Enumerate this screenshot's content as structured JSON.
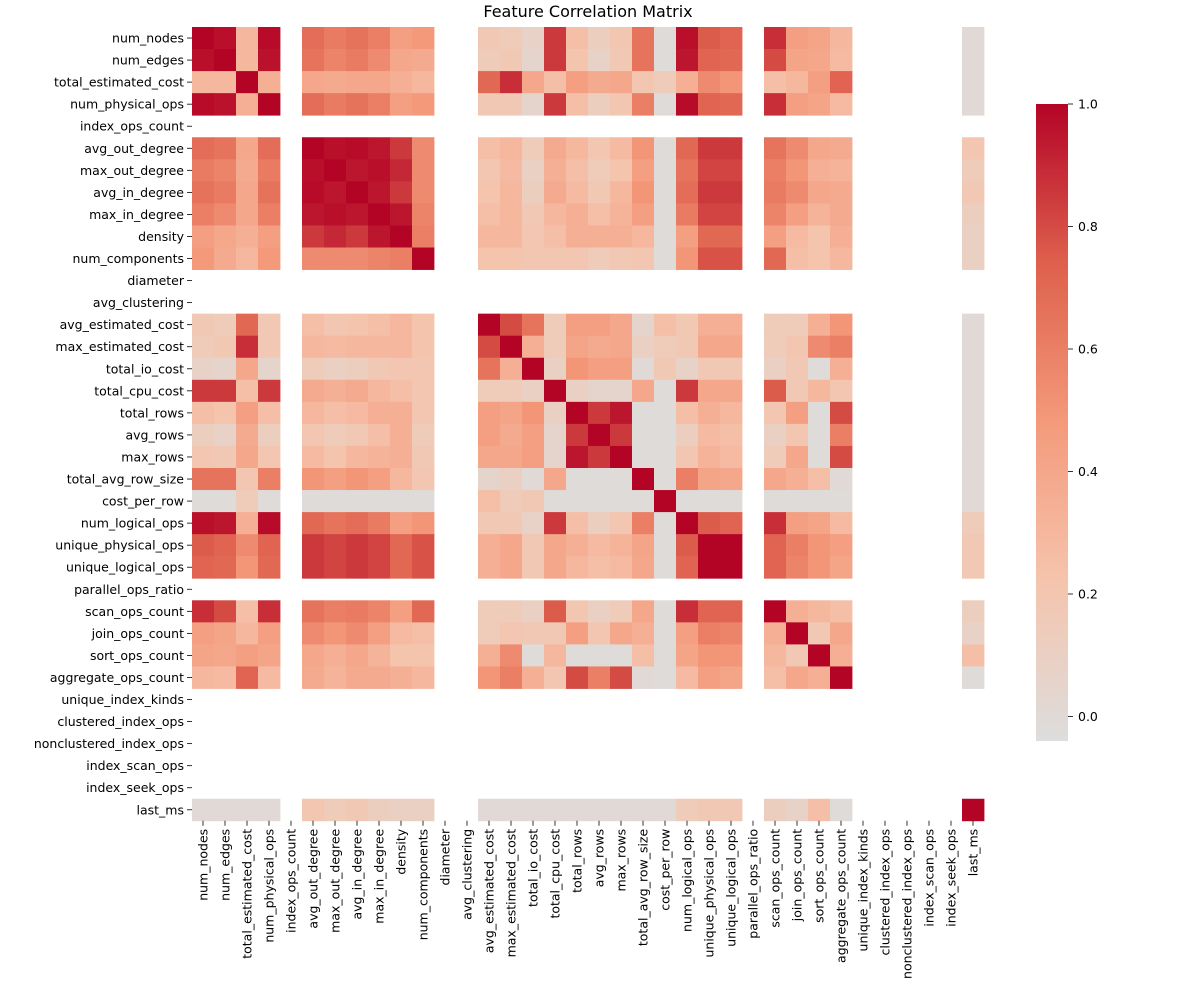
{
  "chart_data": {
    "type": "heatmap",
    "title": "Feature Correlation Matrix",
    "xlabel": "",
    "ylabel": "",
    "colormap": "coolwarm",
    "vmin": -0.04,
    "vmax": 1.0,
    "colorbar_ticks": [
      0.0,
      0.2,
      0.4,
      0.6,
      0.8,
      1.0
    ],
    "colorbar_tick_labels": [
      "0.0",
      "0.2",
      "0.4",
      "0.6",
      "0.8",
      "1.0"
    ],
    "labels": [
      "num_nodes",
      "num_edges",
      "total_estimated_cost",
      "num_physical_ops",
      "index_ops_count",
      "avg_out_degree",
      "max_out_degree",
      "avg_in_degree",
      "max_in_degree",
      "density",
      "num_components",
      "diameter",
      "avg_clustering",
      "avg_estimated_cost",
      "max_estimated_cost",
      "total_io_cost",
      "total_cpu_cost",
      "total_rows",
      "avg_rows",
      "max_rows",
      "total_avg_row_size",
      "cost_per_row",
      "num_logical_ops",
      "unique_physical_ops",
      "unique_logical_ops",
      "parallel_ops_ratio",
      "scan_ops_count",
      "join_ops_count",
      "sort_ops_count",
      "aggregate_ops_count",
      "unique_index_kinds",
      "clustered_index_ops",
      "nonclustered_index_ops",
      "index_scan_ops",
      "index_seek_ops",
      "last_ms"
    ],
    "matrix": [
      [
        1.0,
        0.97,
        0.3,
        0.98,
        null,
        0.68,
        0.62,
        0.66,
        0.6,
        0.45,
        0.48,
        null,
        null,
        0.18,
        0.15,
        0.08,
        0.85,
        0.25,
        0.12,
        0.2,
        0.65,
        -0.02,
        0.97,
        0.75,
        0.72,
        null,
        0.88,
        0.45,
        0.42,
        0.3,
        null,
        null,
        null,
        null,
        null,
        0.0
      ],
      [
        0.97,
        1.0,
        0.3,
        0.96,
        null,
        0.65,
        0.58,
        0.62,
        0.55,
        0.4,
        0.38,
        null,
        null,
        0.15,
        0.18,
        0.05,
        0.85,
        0.22,
        0.08,
        0.18,
        0.65,
        -0.02,
        0.95,
        0.72,
        0.7,
        null,
        0.8,
        0.42,
        0.4,
        0.28,
        null,
        null,
        null,
        null,
        null,
        0.0
      ],
      [
        0.3,
        0.3,
        1.0,
        0.35,
        null,
        0.4,
        0.38,
        0.4,
        0.4,
        0.35,
        0.3,
        null,
        null,
        0.7,
        0.88,
        0.4,
        0.25,
        0.45,
        0.38,
        0.4,
        0.2,
        0.15,
        0.35,
        0.55,
        0.5,
        null,
        0.25,
        0.3,
        0.45,
        0.72,
        null,
        null,
        null,
        null,
        null,
        0.0
      ],
      [
        0.98,
        0.96,
        0.35,
        1.0,
        null,
        0.68,
        0.62,
        0.66,
        0.6,
        0.45,
        0.48,
        null,
        null,
        0.18,
        0.18,
        0.05,
        0.85,
        0.25,
        0.12,
        0.2,
        0.6,
        -0.02,
        0.98,
        0.72,
        0.7,
        null,
        0.88,
        0.45,
        0.42,
        0.28,
        null,
        null,
        null,
        null,
        null,
        0.0
      ],
      [
        null,
        null,
        null,
        null,
        null,
        null,
        null,
        null,
        null,
        null,
        null,
        null,
        null,
        null,
        null,
        null,
        null,
        null,
        null,
        null,
        null,
        null,
        null,
        null,
        null,
        null,
        null,
        null,
        null,
        null,
        null,
        null,
        null,
        null,
        null,
        null
      ],
      [
        0.68,
        0.65,
        0.4,
        0.68,
        null,
        1.0,
        0.97,
        0.98,
        0.95,
        0.85,
        0.55,
        null,
        null,
        0.25,
        0.3,
        0.15,
        0.38,
        0.3,
        0.2,
        0.28,
        0.5,
        -0.02,
        0.7,
        0.85,
        0.85,
        null,
        0.65,
        0.55,
        0.4,
        0.38,
        null,
        null,
        null,
        null,
        null,
        0.2
      ],
      [
        0.62,
        0.58,
        0.38,
        0.62,
        null,
        0.97,
        1.0,
        0.95,
        0.97,
        0.9,
        0.55,
        null,
        null,
        0.2,
        0.28,
        0.1,
        0.35,
        0.25,
        0.15,
        0.22,
        0.45,
        -0.02,
        0.65,
        0.82,
        0.82,
        null,
        0.6,
        0.5,
        0.35,
        0.32,
        null,
        null,
        null,
        null,
        null,
        0.15
      ],
      [
        0.66,
        0.62,
        0.4,
        0.66,
        null,
        0.98,
        0.95,
        1.0,
        0.95,
        0.85,
        0.55,
        null,
        null,
        0.22,
        0.3,
        0.12,
        0.38,
        0.28,
        0.18,
        0.3,
        0.5,
        -0.02,
        0.68,
        0.85,
        0.85,
        null,
        0.62,
        0.55,
        0.4,
        0.38,
        null,
        null,
        null,
        null,
        null,
        0.18
      ],
      [
        0.6,
        0.55,
        0.4,
        0.6,
        null,
        0.95,
        0.97,
        0.95,
        1.0,
        0.95,
        0.58,
        null,
        null,
        0.25,
        0.3,
        0.18,
        0.3,
        0.35,
        0.25,
        0.32,
        0.45,
        -0.02,
        0.62,
        0.82,
        0.82,
        null,
        0.58,
        0.45,
        0.32,
        0.38,
        null,
        null,
        null,
        null,
        null,
        0.12
      ],
      [
        0.45,
        0.4,
        0.35,
        0.45,
        null,
        0.85,
        0.9,
        0.85,
        0.95,
        1.0,
        0.6,
        null,
        null,
        0.3,
        0.3,
        0.2,
        0.25,
        0.35,
        0.35,
        0.35,
        0.3,
        -0.02,
        0.45,
        0.7,
        0.7,
        null,
        0.45,
        0.28,
        0.22,
        0.35,
        null,
        null,
        null,
        null,
        null,
        0.1
      ],
      [
        0.48,
        0.38,
        0.3,
        0.48,
        null,
        0.55,
        0.55,
        0.55,
        0.58,
        0.6,
        1.0,
        null,
        null,
        0.22,
        0.22,
        0.2,
        0.2,
        0.2,
        0.15,
        0.18,
        0.2,
        -0.02,
        0.5,
        0.78,
        0.78,
        null,
        0.7,
        0.25,
        0.22,
        0.3,
        null,
        null,
        null,
        null,
        null,
        0.1
      ],
      [
        null,
        null,
        null,
        null,
        null,
        null,
        null,
        null,
        null,
        null,
        null,
        null,
        null,
        null,
        null,
        null,
        null,
        null,
        null,
        null,
        null,
        null,
        null,
        null,
        null,
        null,
        null,
        null,
        null,
        null,
        null,
        null,
        null,
        null,
        null,
        null
      ],
      [
        null,
        null,
        null,
        null,
        null,
        null,
        null,
        null,
        null,
        null,
        null,
        null,
        null,
        null,
        null,
        null,
        null,
        null,
        null,
        null,
        null,
        null,
        null,
        null,
        null,
        null,
        null,
        null,
        null,
        null,
        null,
        null,
        null,
        null,
        null,
        null
      ],
      [
        0.18,
        0.15,
        0.7,
        0.18,
        null,
        0.25,
        0.2,
        0.22,
        0.25,
        0.3,
        0.22,
        null,
        null,
        1.0,
        0.8,
        0.65,
        0.15,
        0.45,
        0.45,
        0.4,
        0.05,
        0.25,
        0.18,
        0.35,
        0.35,
        null,
        0.15,
        0.15,
        0.35,
        0.5,
        null,
        null,
        null,
        null,
        null,
        0.0
      ],
      [
        0.15,
        0.18,
        0.88,
        0.18,
        null,
        0.3,
        0.28,
        0.3,
        0.3,
        0.3,
        0.22,
        null,
        null,
        0.8,
        1.0,
        0.35,
        0.15,
        0.42,
        0.38,
        0.4,
        0.1,
        0.15,
        0.18,
        0.4,
        0.4,
        null,
        0.15,
        0.2,
        0.55,
        0.6,
        null,
        null,
        null,
        null,
        null,
        0.0
      ],
      [
        0.08,
        0.05,
        0.4,
        0.05,
        null,
        0.15,
        0.1,
        0.12,
        0.18,
        0.2,
        0.2,
        null,
        null,
        0.65,
        0.35,
        1.0,
        0.1,
        0.5,
        0.45,
        0.45,
        0.0,
        0.18,
        0.08,
        0.18,
        0.18,
        null,
        0.1,
        0.18,
        -0.02,
        0.35,
        null,
        null,
        null,
        null,
        null,
        0.0
      ],
      [
        0.85,
        0.85,
        0.25,
        0.85,
        null,
        0.38,
        0.35,
        0.38,
        0.3,
        0.25,
        0.2,
        null,
        null,
        0.15,
        0.15,
        0.1,
        1.0,
        0.1,
        0.05,
        0.05,
        0.4,
        -0.02,
        0.85,
        0.4,
        0.4,
        null,
        0.75,
        0.18,
        0.3,
        0.2,
        null,
        null,
        null,
        null,
        null,
        0.0
      ],
      [
        0.25,
        0.22,
        0.45,
        0.25,
        null,
        0.3,
        0.25,
        0.28,
        0.35,
        0.35,
        0.2,
        null,
        null,
        0.45,
        0.42,
        0.5,
        0.1,
        1.0,
        0.85,
        0.95,
        -0.02,
        -0.02,
        0.25,
        0.35,
        0.3,
        null,
        0.2,
        0.45,
        -0.02,
        0.8,
        null,
        null,
        null,
        null,
        null,
        0.0
      ],
      [
        0.12,
        0.08,
        0.38,
        0.12,
        null,
        0.2,
        0.15,
        0.18,
        0.25,
        0.35,
        0.15,
        null,
        null,
        0.45,
        0.38,
        0.45,
        0.05,
        0.85,
        1.0,
        0.85,
        -0.02,
        -0.02,
        0.12,
        0.28,
        0.25,
        null,
        0.1,
        0.2,
        -0.02,
        0.6,
        null,
        null,
        null,
        null,
        null,
        0.0
      ],
      [
        0.2,
        0.18,
        0.4,
        0.2,
        null,
        0.28,
        0.22,
        0.3,
        0.32,
        0.35,
        0.18,
        null,
        null,
        0.4,
        0.4,
        0.45,
        0.05,
        0.95,
        0.85,
        1.0,
        -0.02,
        -0.02,
        0.2,
        0.32,
        0.28,
        null,
        0.15,
        0.4,
        -0.02,
        0.8,
        null,
        null,
        null,
        null,
        null,
        0.0
      ],
      [
        0.65,
        0.65,
        0.2,
        0.6,
        null,
        0.5,
        0.45,
        0.5,
        0.45,
        0.3,
        0.2,
        null,
        null,
        0.05,
        0.1,
        0.0,
        0.4,
        -0.02,
        -0.02,
        -0.02,
        1.0,
        -0.02,
        0.6,
        0.42,
        0.4,
        null,
        0.4,
        0.35,
        0.25,
        0.0,
        null,
        null,
        null,
        null,
        null,
        0.0
      ],
      [
        -0.02,
        -0.02,
        0.15,
        -0.02,
        null,
        -0.02,
        -0.02,
        -0.02,
        -0.02,
        -0.02,
        -0.02,
        null,
        null,
        0.25,
        0.15,
        0.18,
        -0.02,
        -0.02,
        -0.02,
        -0.02,
        -0.02,
        1.0,
        -0.02,
        -0.02,
        -0.02,
        null,
        -0.02,
        -0.02,
        -0.02,
        -0.02,
        null,
        null,
        null,
        null,
        null,
        0.0
      ],
      [
        0.97,
        0.95,
        0.35,
        0.98,
        null,
        0.7,
        0.65,
        0.68,
        0.62,
        0.45,
        0.5,
        null,
        null,
        0.18,
        0.18,
        0.08,
        0.85,
        0.25,
        0.12,
        0.2,
        0.6,
        -0.02,
        1.0,
        0.75,
        0.72,
        null,
        0.88,
        0.45,
        0.42,
        0.28,
        null,
        null,
        null,
        null,
        null,
        0.15
      ],
      [
        0.75,
        0.72,
        0.55,
        0.72,
        null,
        0.85,
        0.82,
        0.85,
        0.82,
        0.7,
        0.78,
        null,
        null,
        0.35,
        0.4,
        0.18,
        0.4,
        0.35,
        0.28,
        0.32,
        0.42,
        -0.02,
        0.75,
        1.0,
        1.0,
        null,
        0.72,
        0.6,
        0.5,
        0.45,
        null,
        null,
        null,
        null,
        null,
        0.18
      ],
      [
        0.72,
        0.7,
        0.5,
        0.7,
        null,
        0.85,
        0.82,
        0.85,
        0.82,
        0.7,
        0.78,
        null,
        null,
        0.35,
        0.4,
        0.18,
        0.4,
        0.3,
        0.25,
        0.28,
        0.4,
        -0.02,
        0.72,
        1.0,
        1.0,
        null,
        0.72,
        0.58,
        0.5,
        0.42,
        null,
        null,
        null,
        null,
        null,
        0.18
      ],
      [
        null,
        null,
        null,
        null,
        null,
        null,
        null,
        null,
        null,
        null,
        null,
        null,
        null,
        null,
        null,
        null,
        null,
        null,
        null,
        null,
        null,
        null,
        null,
        null,
        null,
        null,
        null,
        null,
        null,
        null,
        null,
        null,
        null,
        null,
        null,
        null
      ],
      [
        0.88,
        0.8,
        0.25,
        0.88,
        null,
        0.65,
        0.6,
        0.62,
        0.58,
        0.45,
        0.7,
        null,
        null,
        0.15,
        0.15,
        0.1,
        0.75,
        0.2,
        0.1,
        0.15,
        0.4,
        -0.02,
        0.88,
        0.72,
        0.72,
        null,
        1.0,
        0.35,
        0.3,
        0.25,
        null,
        null,
        null,
        null,
        null,
        0.12
      ],
      [
        0.45,
        0.42,
        0.3,
        0.45,
        null,
        0.55,
        0.5,
        0.55,
        0.45,
        0.28,
        0.25,
        null,
        null,
        0.15,
        0.2,
        0.18,
        0.18,
        0.45,
        0.2,
        0.4,
        0.35,
        -0.02,
        0.45,
        0.6,
        0.58,
        null,
        0.35,
        1.0,
        0.18,
        0.4,
        null,
        null,
        null,
        null,
        null,
        0.08
      ],
      [
        0.42,
        0.4,
        0.45,
        0.42,
        null,
        0.4,
        0.35,
        0.4,
        0.32,
        0.22,
        0.22,
        null,
        null,
        0.35,
        0.55,
        -0.02,
        0.3,
        -0.02,
        -0.02,
        -0.02,
        0.25,
        -0.02,
        0.42,
        0.5,
        0.5,
        null,
        0.3,
        0.18,
        1.0,
        0.35,
        null,
        null,
        null,
        null,
        null,
        0.25
      ],
      [
        0.3,
        0.28,
        0.72,
        0.28,
        null,
        0.38,
        0.32,
        0.38,
        0.38,
        0.35,
        0.3,
        null,
        null,
        0.5,
        0.6,
        0.35,
        0.2,
        0.8,
        0.6,
        0.8,
        0.0,
        -0.02,
        0.28,
        0.45,
        0.42,
        null,
        0.25,
        0.4,
        0.35,
        1.0,
        null,
        null,
        null,
        null,
        null,
        -0.02
      ],
      [
        null,
        null,
        null,
        null,
        null,
        null,
        null,
        null,
        null,
        null,
        null,
        null,
        null,
        null,
        null,
        null,
        null,
        null,
        null,
        null,
        null,
        null,
        null,
        null,
        null,
        null,
        null,
        null,
        null,
        null,
        null,
        null,
        null,
        null,
        null,
        null
      ],
      [
        null,
        null,
        null,
        null,
        null,
        null,
        null,
        null,
        null,
        null,
        null,
        null,
        null,
        null,
        null,
        null,
        null,
        null,
        null,
        null,
        null,
        null,
        null,
        null,
        null,
        null,
        null,
        null,
        null,
        null,
        null,
        null,
        null,
        null,
        null,
        null
      ],
      [
        null,
        null,
        null,
        null,
        null,
        null,
        null,
        null,
        null,
        null,
        null,
        null,
        null,
        null,
        null,
        null,
        null,
        null,
        null,
        null,
        null,
        null,
        null,
        null,
        null,
        null,
        null,
        null,
        null,
        null,
        null,
        null,
        null,
        null,
        null,
        null
      ],
      [
        null,
        null,
        null,
        null,
        null,
        null,
        null,
        null,
        null,
        null,
        null,
        null,
        null,
        null,
        null,
        null,
        null,
        null,
        null,
        null,
        null,
        null,
        null,
        null,
        null,
        null,
        null,
        null,
        null,
        null,
        null,
        null,
        null,
        null,
        null,
        null
      ],
      [
        null,
        null,
        null,
        null,
        null,
        null,
        null,
        null,
        null,
        null,
        null,
        null,
        null,
        null,
        null,
        null,
        null,
        null,
        null,
        null,
        null,
        null,
        null,
        null,
        null,
        null,
        null,
        null,
        null,
        null,
        null,
        null,
        null,
        null,
        null,
        null
      ],
      [
        0.0,
        0.0,
        0.0,
        0.0,
        null,
        0.2,
        0.15,
        0.18,
        0.12,
        0.1,
        0.1,
        null,
        null,
        0.0,
        0.0,
        0.0,
        0.0,
        0.0,
        0.0,
        0.0,
        0.0,
        0.0,
        0.15,
        0.18,
        0.18,
        null,
        0.12,
        0.08,
        0.25,
        -0.02,
        null,
        null,
        null,
        null,
        null,
        1.0
      ]
    ]
  }
}
